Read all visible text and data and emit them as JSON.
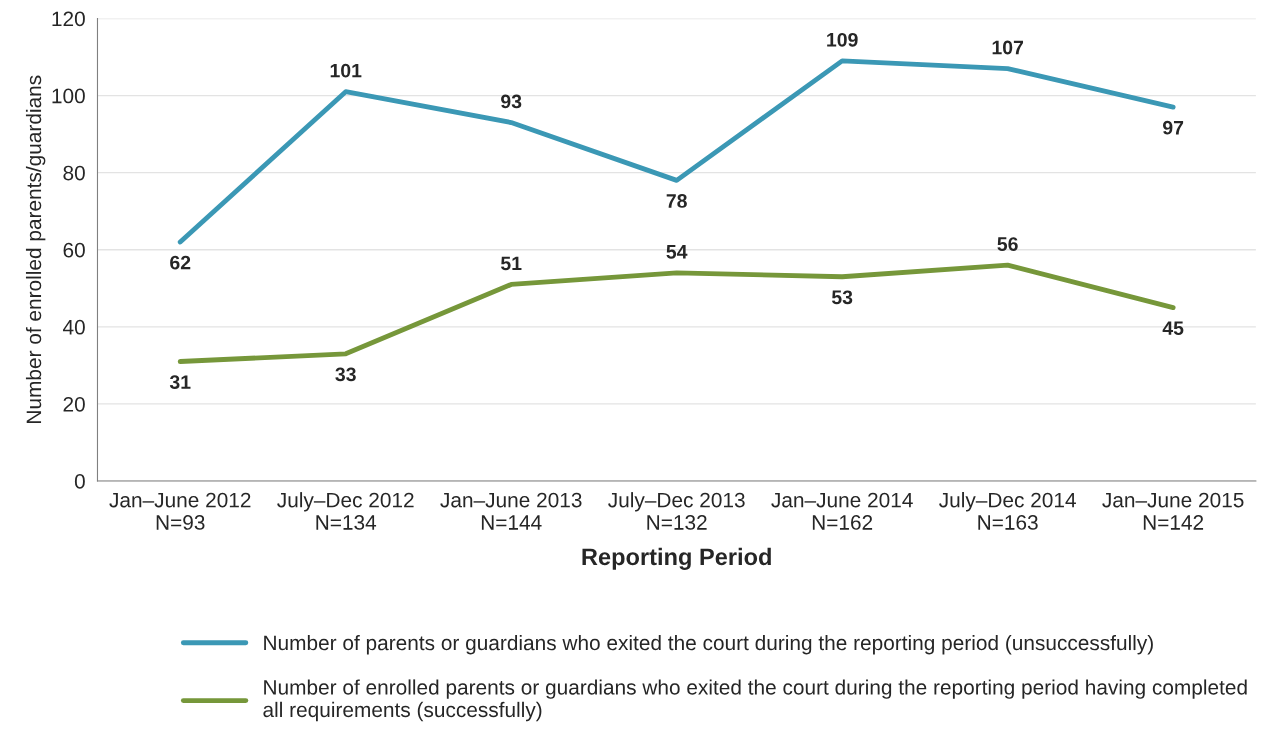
{
  "chart_data": {
    "type": "line",
    "categories": [
      "Jan–June 2012\nN=93",
      "July–Dec 2012\nN=134",
      "Jan–June 2013\nN=144",
      "July–Dec 2013\nN=132",
      "Jan–June 2014\nN=162",
      "July–Dec 2014\nN=163",
      "Jan–June 2015\nN=142"
    ],
    "series": [
      {
        "name": "Number of parents or guardians who exited the court during the reporting period (unsuccessfully)",
        "color": "#3b98b5",
        "values": [
          62,
          101,
          93,
          78,
          109,
          107,
          97
        ]
      },
      {
        "name": "Number of enrolled parents or guardians who exited the court during the reporting period having completed all requirements (successfully)",
        "color": "#76973a",
        "values": [
          31,
          33,
          51,
          54,
          53,
          56,
          45
        ]
      }
    ],
    "xlabel": "Reporting Period",
    "ylabel": "Number of enrolled parents/guardians",
    "ylim": [
      0,
      120
    ],
    "yticks": [
      0,
      20,
      40,
      60,
      80,
      100,
      120
    ],
    "grid": "y",
    "legend": "bottom",
    "marker": "none",
    "line_style": "solid",
    "data_labels": true
  }
}
